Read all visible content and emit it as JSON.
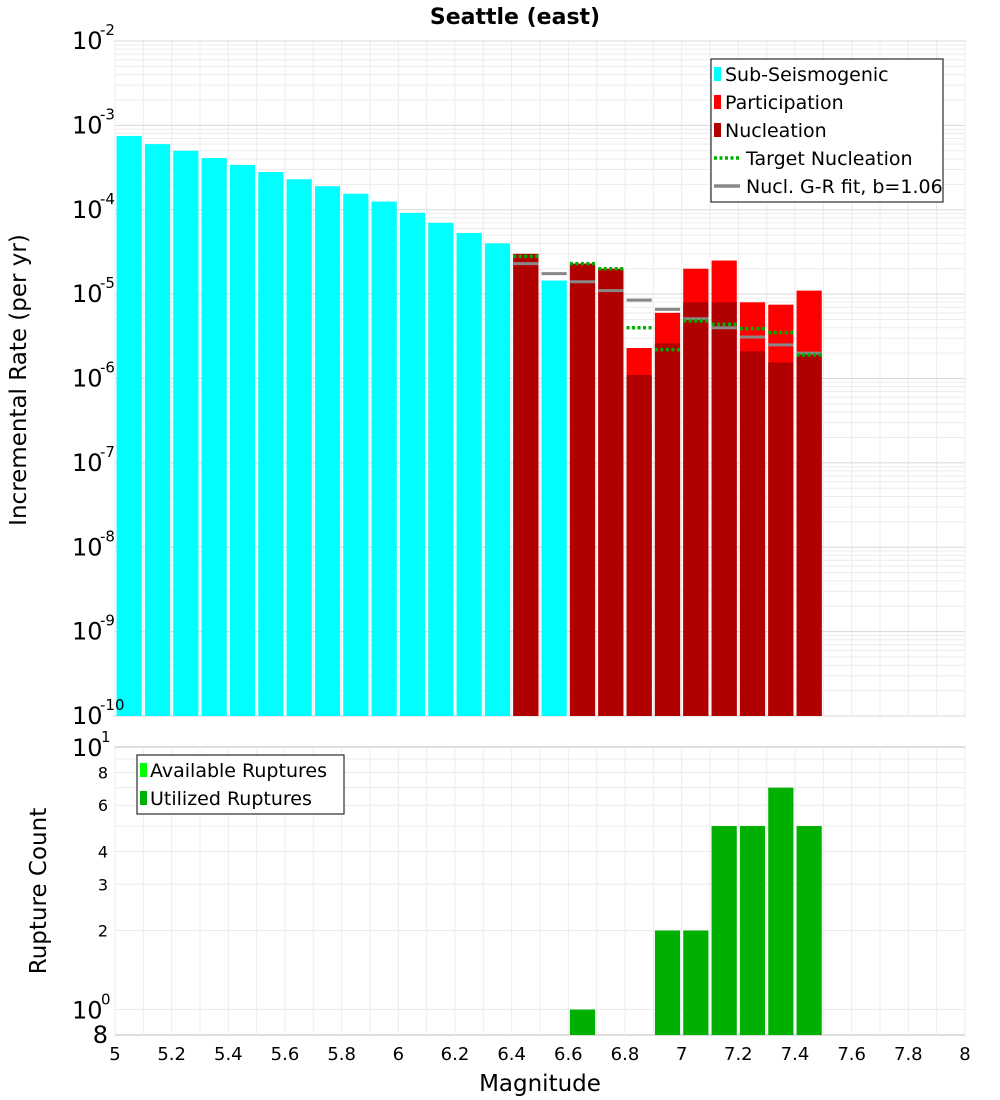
{
  "chart_data": [
    {
      "type": "bar",
      "title": "Seattle (east)",
      "xlabel": "",
      "ylabel": "Incremental Rate (per yr)",
      "yscale": "log",
      "ylim": [
        1e-10,
        0.01
      ],
      "xlim": [
        5,
        8
      ],
      "ytick_labels": [
        {
          "base": "10",
          "exp": "-10",
          "value": 1e-10
        },
        {
          "base": "10",
          "exp": "-9",
          "value": 1e-09
        },
        {
          "base": "10",
          "exp": "-8",
          "value": 1e-08
        },
        {
          "base": "10",
          "exp": "-7",
          "value": 1e-07
        },
        {
          "base": "10",
          "exp": "-6",
          "value": 1e-06
        },
        {
          "base": "10",
          "exp": "-5",
          "value": 1e-05
        },
        {
          "base": "10",
          "exp": "-4",
          "value": 0.0001
        },
        {
          "base": "10",
          "exp": "-3",
          "value": 0.001
        },
        {
          "base": "10",
          "exp": "-2",
          "value": 0.01
        }
      ],
      "series": [
        {
          "name": "Sub-Seismogenic",
          "color": "#00ffff",
          "points": [
            {
              "x": 5.05,
              "y": 0.00075
            },
            {
              "x": 5.15,
              "y": 0.0006
            },
            {
              "x": 5.25,
              "y": 0.0005
            },
            {
              "x": 5.35,
              "y": 0.00041
            },
            {
              "x": 5.45,
              "y": 0.00034
            },
            {
              "x": 5.55,
              "y": 0.00028
            },
            {
              "x": 5.65,
              "y": 0.00023
            },
            {
              "x": 5.75,
              "y": 0.00019
            },
            {
              "x": 5.85,
              "y": 0.000155
            },
            {
              "x": 5.95,
              "y": 0.000125
            },
            {
              "x": 6.05,
              "y": 9.2e-05
            },
            {
              "x": 6.15,
              "y": 7e-05
            },
            {
              "x": 6.25,
              "y": 5.3e-05
            },
            {
              "x": 6.35,
              "y": 4e-05
            },
            {
              "x": 6.55,
              "y": 1.45e-05
            }
          ]
        },
        {
          "name": "Participation",
          "color": "#ff0000",
          "points": [
            {
              "x": 6.45,
              "y": 3e-05
            },
            {
              "x": 6.65,
              "y": 2.3e-05
            },
            {
              "x": 6.75,
              "y": 2e-05
            },
            {
              "x": 6.85,
              "y": 2.3e-06
            },
            {
              "x": 6.95,
              "y": 6e-06
            },
            {
              "x": 7.05,
              "y": 2e-05
            },
            {
              "x": 7.15,
              "y": 2.5e-05
            },
            {
              "x": 7.25,
              "y": 8e-06
            },
            {
              "x": 7.35,
              "y": 7.5e-06
            },
            {
              "x": 7.45,
              "y": 1.1e-05
            }
          ]
        },
        {
          "name": "Nucleation",
          "color": "#b10000",
          "points": [
            {
              "x": 6.45,
              "y": 3e-05
            },
            {
              "x": 6.65,
              "y": 2.3e-05
            },
            {
              "x": 6.75,
              "y": 2e-05
            },
            {
              "x": 6.85,
              "y": 1.1e-06
            },
            {
              "x": 6.95,
              "y": 2.6e-06
            },
            {
              "x": 7.05,
              "y": 8e-06
            },
            {
              "x": 7.15,
              "y": 8e-06
            },
            {
              "x": 7.25,
              "y": 2.1e-06
            },
            {
              "x": 7.35,
              "y": 1.55e-06
            },
            {
              "x": 7.45,
              "y": 1.9e-06
            }
          ]
        },
        {
          "name": "Target Nucleation",
          "color": "#00b000",
          "style": "dotted",
          "points": [
            {
              "x": 6.45,
              "y": 2.8e-05
            },
            {
              "x": 6.65,
              "y": 2.3e-05
            },
            {
              "x": 6.75,
              "y": 2e-05
            },
            {
              "x": 6.85,
              "y": 4e-06
            },
            {
              "x": 6.95,
              "y": 2.2e-06
            },
            {
              "x": 7.05,
              "y": 4.8e-06
            },
            {
              "x": 7.15,
              "y": 4.4e-06
            },
            {
              "x": 7.25,
              "y": 3.9e-06
            },
            {
              "x": 7.35,
              "y": 3.5e-06
            },
            {
              "x": 7.45,
              "y": 1.9e-06
            }
          ]
        },
        {
          "name": "Nucl. G-R fit, b=1.06",
          "color": "#888888",
          "points": [
            {
              "x": 6.45,
              "y": 2.3e-05
            },
            {
              "x": 6.55,
              "y": 1.75e-05
            },
            {
              "x": 6.65,
              "y": 1.4e-05
            },
            {
              "x": 6.75,
              "y": 1.1e-05
            },
            {
              "x": 6.85,
              "y": 8.5e-06
            },
            {
              "x": 6.95,
              "y": 6.6e-06
            },
            {
              "x": 7.05,
              "y": 5.1e-06
            },
            {
              "x": 7.15,
              "y": 4e-06
            },
            {
              "x": 7.25,
              "y": 3.1e-06
            },
            {
              "x": 7.35,
              "y": 2.5e-06
            },
            {
              "x": 7.45,
              "y": 2e-06
            }
          ]
        }
      ],
      "legend": [
        {
          "label": "Sub-Seismogenic",
          "color": "#00ffff",
          "kind": "patch"
        },
        {
          "label": "Participation",
          "color": "#ff0000",
          "kind": "patch"
        },
        {
          "label": "Nucleation",
          "color": "#b10000",
          "kind": "patch"
        },
        {
          "label": "Target Nucleation",
          "color": "#00b000",
          "kind": "dotted"
        },
        {
          "label": "Nucl. G-R fit, b=1.06",
          "color": "#888888",
          "kind": "line"
        }
      ],
      "legend_position": "top-right"
    },
    {
      "type": "bar",
      "title": "",
      "xlabel": "Magnitude",
      "ylabel": "Rupture Count",
      "yscale": "log",
      "ylim": [
        0.8,
        10
      ],
      "xlim": [
        5,
        8
      ],
      "x_ticks": [
        "5",
        "5.2",
        "5.4",
        "5.6",
        "5.8",
        "6",
        "6.2",
        "6.4",
        "6.6",
        "6.8",
        "7",
        "7.2",
        "7.4",
        "7.6",
        "7.8",
        "8"
      ],
      "y_major_ticks": [
        {
          "base": "10",
          "exp": "0",
          "value": 1
        },
        {
          "base": "10",
          "exp": "1",
          "value": 10
        }
      ],
      "y_minor_ticks": [
        {
          "label": "8",
          "value": 0.8
        },
        {
          "label": "2",
          "value": 2
        },
        {
          "label": "3",
          "value": 3
        },
        {
          "label": "4",
          "value": 4
        },
        {
          "label": "6",
          "value": 6
        },
        {
          "label": "8",
          "value": 8
        }
      ],
      "series": [
        {
          "name": "Utilized Ruptures",
          "color": "#00b000",
          "points": [
            {
              "x": 6.65,
              "y": 1
            },
            {
              "x": 6.95,
              "y": 2
            },
            {
              "x": 7.05,
              "y": 2
            },
            {
              "x": 7.15,
              "y": 5
            },
            {
              "x": 7.25,
              "y": 5
            },
            {
              "x": 7.35,
              "y": 7
            },
            {
              "x": 7.45,
              "y": 5
            }
          ]
        }
      ],
      "legend": [
        {
          "label": "Available Ruptures",
          "color": "#00ff00",
          "kind": "patch"
        },
        {
          "label": "Utilized Ruptures",
          "color": "#00b000",
          "kind": "patch"
        }
      ],
      "legend_position": "top-left"
    }
  ]
}
